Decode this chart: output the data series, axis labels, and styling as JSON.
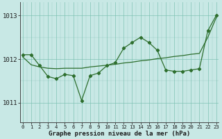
{
  "x": [
    0,
    1,
    2,
    3,
    4,
    5,
    6,
    7,
    8,
    9,
    10,
    11,
    12,
    13,
    14,
    15,
    16,
    17,
    18,
    19,
    20,
    21,
    22,
    23
  ],
  "y_actual": [
    1012.1,
    1012.1,
    1011.85,
    1011.6,
    1011.55,
    1011.65,
    1011.62,
    1011.05,
    1011.62,
    1011.68,
    1011.85,
    1011.92,
    1012.25,
    1012.38,
    1012.5,
    1012.38,
    1012.2,
    1011.75,
    1011.72,
    1011.72,
    1011.75,
    1011.78,
    1012.65,
    1013.0
  ],
  "y_smooth": [
    1012.05,
    1011.87,
    1011.82,
    1011.79,
    1011.78,
    1011.79,
    1011.79,
    1011.79,
    1011.82,
    1011.84,
    1011.86,
    1011.88,
    1011.91,
    1011.93,
    1011.96,
    1011.98,
    1012.01,
    1012.03,
    1012.06,
    1012.08,
    1012.11,
    1012.13,
    1012.5,
    1012.95
  ],
  "line_color": "#2d6e2d",
  "bg_color": "#c8e8e5",
  "grid_color": "#7abfb0",
  "ylabel_vals": [
    1011,
    1012,
    1013
  ],
  "xlabel_label": "Graphe pression niveau de la mer (hPa)",
  "ylim": [
    1010.55,
    1013.3
  ],
  "xlim": [
    -0.3,
    23.3
  ]
}
